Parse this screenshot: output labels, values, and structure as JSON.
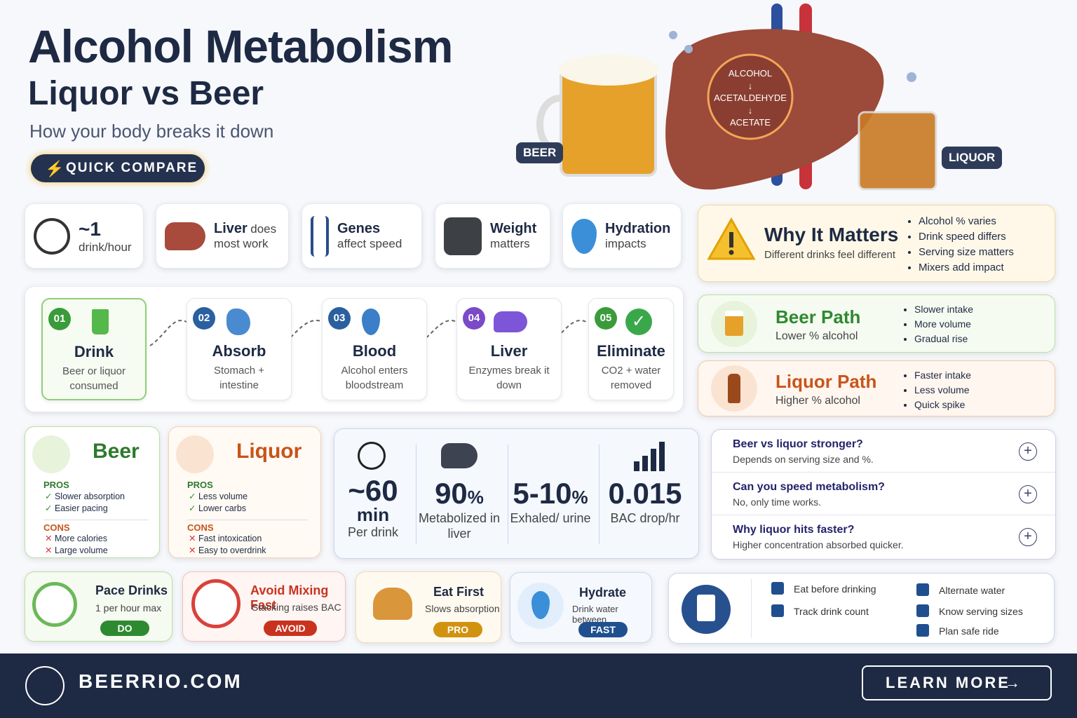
{
  "header": {
    "title": "Alcohol Metabolism",
    "subtitle": "Liquor vs Beer",
    "tagline": "How your body breaks it down",
    "badge": "QUICK COMPARE"
  },
  "hero": {
    "beer_label": "BEER",
    "liquor_label": "LIQUOR",
    "liver_steps": [
      "ALCOHOL",
      "ACETALDEHYDE",
      "ACETATE"
    ]
  },
  "facts": [
    {
      "lead": "~1",
      "rest": "drink/hour"
    },
    {
      "lead": "Liver",
      "rest": "does most work"
    },
    {
      "lead": "Genes",
      "rest": "affect speed"
    },
    {
      "lead": "Weight",
      "rest": "matters"
    },
    {
      "lead": "Hydration",
      "rest": "impacts"
    }
  ],
  "why": {
    "title": "Why It Matters",
    "subtitle": "Different drinks feel different",
    "bullets": [
      "Alcohol % varies",
      "Drink speed differs",
      "Serving size matters",
      "Mixers add impact"
    ]
  },
  "steps": [
    {
      "number": "01",
      "title": "Drink",
      "text": "Beer or liquor consumed"
    },
    {
      "number": "02",
      "title": "Absorb",
      "text": "Stomach + intestine"
    },
    {
      "number": "03",
      "title": "Blood",
      "text": "Alcohol enters bloodstream"
    },
    {
      "number": "04",
      "title": "Liver",
      "text": "Enzymes break it down"
    },
    {
      "number": "05",
      "title": "Eliminate",
      "text": "CO2 + water removed"
    }
  ],
  "paths": [
    {
      "title": "Beer Path",
      "subtitle": "Lower % alcohol",
      "bullets": [
        "Slower intake",
        "More volume",
        "Gradual rise"
      ]
    },
    {
      "title": "Liquor Path",
      "subtitle": "Higher % alcohol",
      "bullets": [
        "Faster intake",
        "Less volume",
        "Quick spike"
      ]
    }
  ],
  "comparison": [
    {
      "name": "Beer",
      "pros_label": "PROS",
      "pros": [
        "Slower absorption",
        "Easier pacing"
      ],
      "cons_label": "CONS",
      "cons": [
        "More calories",
        "Large volume"
      ]
    },
    {
      "name": "Liquor",
      "pros_label": "PROS",
      "pros": [
        "Less volume",
        "Lower carbs"
      ],
      "cons_label": "CONS",
      "cons": [
        "Fast intoxication",
        "Easy to overdrink"
      ]
    }
  ],
  "stats": [
    {
      "value": "~60",
      "unit": "min",
      "label": "Per drink"
    },
    {
      "value": "90",
      "unit": "%",
      "label": "Metabolized in liver"
    },
    {
      "value": "5-10",
      "unit": "%",
      "label": "Exhaled/ urine"
    },
    {
      "value": "0.015",
      "label": "BAC drop/hr"
    }
  ],
  "faq": [
    {
      "q": "Beer vs liquor stronger?",
      "a": "Depends on serving size and %."
    },
    {
      "q": "Can you speed metabolism?",
      "a": "No, only time works."
    },
    {
      "q": "Why liquor hits faster?",
      "a": "Higher concentration absorbed quicker."
    }
  ],
  "tips": [
    {
      "title": "Pace Drinks",
      "text": "1 per hour max",
      "tag": "DO"
    },
    {
      "title": "Avoid Mixing Fast",
      "text": "Stacking raises BAC",
      "tag": "AVOID"
    },
    {
      "title": "Eat First",
      "text": "Slows absorption",
      "tag": "PRO"
    },
    {
      "title": "Hydrate",
      "text": "Drink water between",
      "tag": "FAST"
    }
  ],
  "checklist": [
    "Eat before drinking",
    "Track drink count",
    "Alternate water",
    "Know serving sizes",
    "Plan safe ride"
  ],
  "footer": {
    "brand": "BEERRIO.COM",
    "cta": "LEARN MORE"
  }
}
